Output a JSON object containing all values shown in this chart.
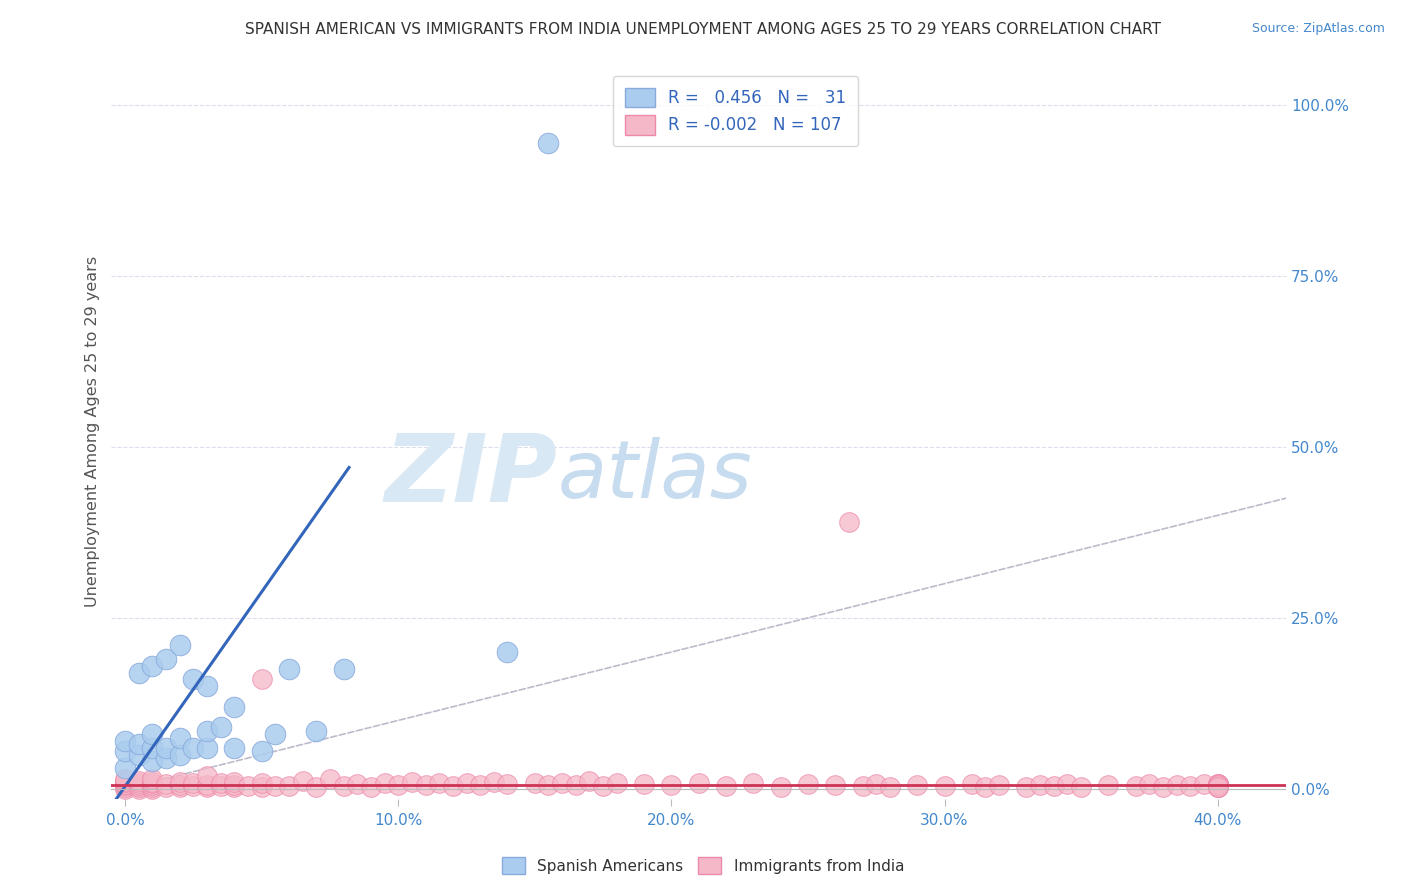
{
  "title": "SPANISH AMERICAN VS IMMIGRANTS FROM INDIA UNEMPLOYMENT AMONG AGES 25 TO 29 YEARS CORRELATION CHART",
  "source": "Source: ZipAtlas.com",
  "ylabel": "Unemployment Among Ages 25 to 29 years",
  "x_tick_labels": [
    "0.0%",
    "10.0%",
    "20.0%",
    "30.0%",
    "40.0%"
  ],
  "x_tick_vals": [
    0.0,
    0.1,
    0.2,
    0.3,
    0.4
  ],
  "y_tick_labels_right": [
    "0.0%",
    "25.0%",
    "50.0%",
    "75.0%",
    "100.0%"
  ],
  "y_tick_vals": [
    0.0,
    0.25,
    0.5,
    0.75,
    1.0
  ],
  "xlim": [
    -0.005,
    0.425
  ],
  "ylim": [
    -0.015,
    1.06
  ],
  "legend_labels": [
    "Spanish Americans",
    "Immigrants from India"
  ],
  "blue_color": "#AACCEE",
  "blue_edge_color": "#88AADD",
  "pink_color": "#F5B8C8",
  "pink_edge_color": "#EE88AA",
  "blue_line_color": "#3366BB",
  "pink_line_color": "#CC3355",
  "ref_line_color": "#BBBBCC",
  "background_color": "#FFFFFF",
  "grid_color": "#DDDDEE",
  "watermark_color": "#D8E8F5",
  "watermark_text_zip": "ZIP",
  "watermark_text_atlas": "atlas",
  "blue_scatter_x": [
    0.0,
    0.0,
    0.0,
    0.005,
    0.005,
    0.005,
    0.01,
    0.01,
    0.01,
    0.01,
    0.015,
    0.015,
    0.015,
    0.02,
    0.02,
    0.02,
    0.025,
    0.025,
    0.03,
    0.03,
    0.03,
    0.035,
    0.04,
    0.04,
    0.05,
    0.055,
    0.06,
    0.07,
    0.08,
    0.14,
    0.155
  ],
  "blue_scatter_y": [
    0.03,
    0.055,
    0.07,
    0.05,
    0.065,
    0.17,
    0.04,
    0.06,
    0.08,
    0.18,
    0.045,
    0.06,
    0.19,
    0.05,
    0.075,
    0.21,
    0.06,
    0.16,
    0.06,
    0.085,
    0.15,
    0.09,
    0.06,
    0.12,
    0.055,
    0.08,
    0.175,
    0.085,
    0.175,
    0.2,
    0.945
  ],
  "pink_scatter_x": [
    0.0,
    0.0,
    0.0,
    0.0,
    0.0,
    0.0,
    0.0,
    0.005,
    0.005,
    0.005,
    0.005,
    0.005,
    0.01,
    0.01,
    0.01,
    0.01,
    0.01,
    0.01,
    0.015,
    0.015,
    0.02,
    0.02,
    0.02,
    0.025,
    0.025,
    0.03,
    0.03,
    0.03,
    0.035,
    0.035,
    0.04,
    0.04,
    0.04,
    0.045,
    0.05,
    0.05,
    0.05,
    0.055,
    0.06,
    0.065,
    0.07,
    0.075,
    0.08,
    0.085,
    0.09,
    0.095,
    0.1,
    0.105,
    0.11,
    0.115,
    0.12,
    0.125,
    0.13,
    0.135,
    0.14,
    0.15,
    0.155,
    0.16,
    0.165,
    0.17,
    0.175,
    0.18,
    0.19,
    0.2,
    0.21,
    0.22,
    0.23,
    0.24,
    0.25,
    0.26,
    0.265,
    0.27,
    0.275,
    0.28,
    0.29,
    0.3,
    0.31,
    0.315,
    0.32,
    0.33,
    0.335,
    0.34,
    0.345,
    0.35,
    0.36,
    0.37,
    0.375,
    0.38,
    0.385,
    0.39,
    0.395,
    0.4,
    0.4,
    0.4,
    0.4,
    0.4,
    0.4,
    0.4,
    0.4,
    0.4,
    0.4,
    0.4,
    0.4,
    0.4,
    0.4,
    0.4,
    0.4
  ],
  "pink_scatter_y": [
    0.0,
    0.003,
    0.005,
    0.007,
    0.01,
    0.012,
    0.015,
    0.0,
    0.003,
    0.005,
    0.008,
    0.012,
    0.0,
    0.003,
    0.005,
    0.008,
    0.01,
    0.015,
    0.003,
    0.007,
    0.002,
    0.005,
    0.01,
    0.004,
    0.008,
    0.002,
    0.005,
    0.018,
    0.004,
    0.009,
    0.003,
    0.006,
    0.01,
    0.004,
    0.003,
    0.009,
    0.16,
    0.004,
    0.004,
    0.012,
    0.003,
    0.015,
    0.004,
    0.007,
    0.003,
    0.008,
    0.006,
    0.01,
    0.005,
    0.009,
    0.004,
    0.008,
    0.006,
    0.01,
    0.007,
    0.009,
    0.005,
    0.008,
    0.006,
    0.012,
    0.004,
    0.008,
    0.007,
    0.005,
    0.009,
    0.004,
    0.008,
    0.003,
    0.007,
    0.005,
    0.39,
    0.004,
    0.007,
    0.003,
    0.006,
    0.004,
    0.007,
    0.003,
    0.005,
    0.003,
    0.006,
    0.004,
    0.007,
    0.003,
    0.005,
    0.004,
    0.007,
    0.003,
    0.006,
    0.004,
    0.007,
    0.003,
    0.005,
    0.007,
    0.004,
    0.006,
    0.003,
    0.005,
    0.007,
    0.004,
    0.006,
    0.003,
    0.005,
    0.007,
    0.004,
    0.006,
    0.003
  ],
  "blue_line_x0": -0.005,
  "blue_line_x1": 0.082,
  "blue_line_y0": -0.025,
  "blue_line_y1": 0.47,
  "pink_line_y": 0.006
}
